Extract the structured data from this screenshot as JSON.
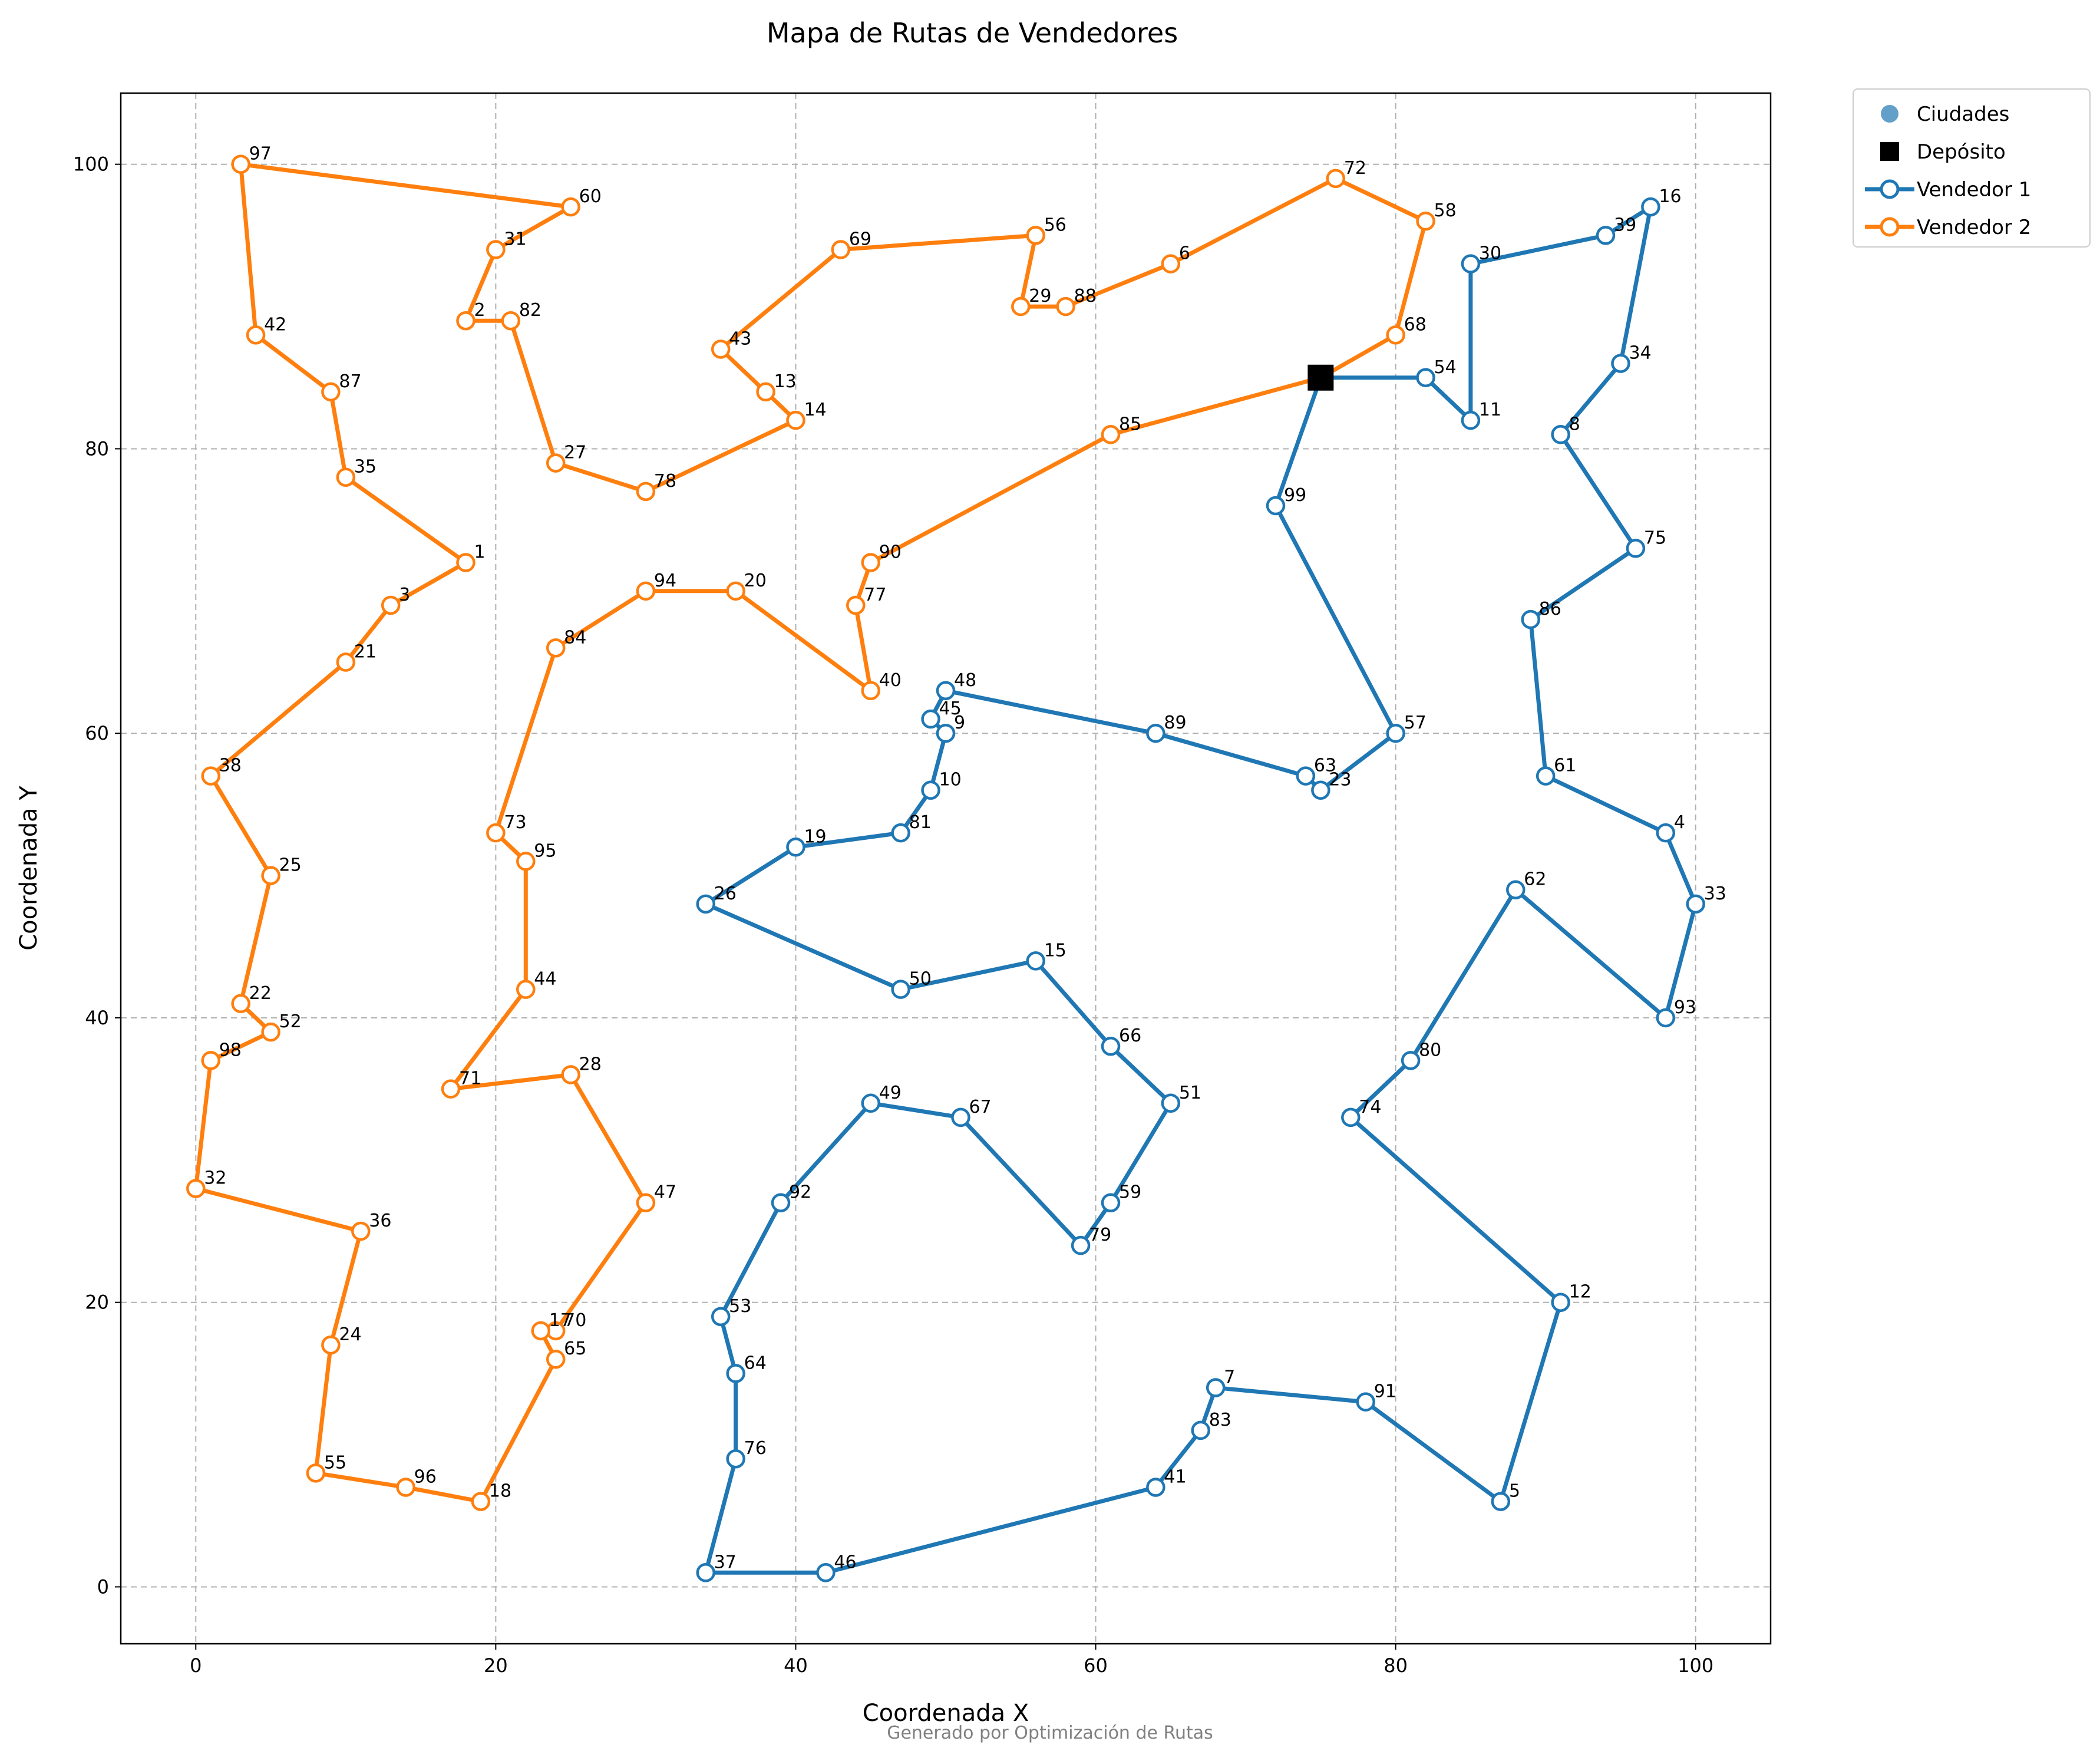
{
  "chart_data": {
    "type": "line",
    "title": "Mapa de Rutas de Vendedores",
    "xlabel": "Coordenada X",
    "ylabel": "Coordenada Y",
    "xlim": [
      -5,
      105
    ],
    "ylim": [
      -4,
      105
    ],
    "xticks": [
      0,
      20,
      40,
      60,
      80,
      100
    ],
    "yticks": [
      0,
      20,
      40,
      60,
      80,
      100
    ],
    "grid": true,
    "legend_position": "outside-top-right",
    "footer": "Generado por Optimización de Rutas",
    "legend": [
      {
        "label": "Ciudades",
        "kind": "point",
        "color": "#1f77b4"
      },
      {
        "label": "Depósito",
        "kind": "square",
        "color": "#000000"
      },
      {
        "label": "Vendedor 1",
        "kind": "route",
        "color": "#1f77b4"
      },
      {
        "label": "Vendedor 2",
        "kind": "route",
        "color": "#ff7f0e"
      }
    ],
    "depot": {
      "x": 75,
      "y": 85
    },
    "cities": [
      {
        "id": "1",
        "x": 18,
        "y": 72
      },
      {
        "id": "2",
        "x": 18,
        "y": 89
      },
      {
        "id": "3",
        "x": 13,
        "y": 69
      },
      {
        "id": "4",
        "x": 98,
        "y": 53
      },
      {
        "id": "5",
        "x": 87,
        "y": 6
      },
      {
        "id": "6",
        "x": 65,
        "y": 93
      },
      {
        "id": "7",
        "x": 68,
        "y": 14
      },
      {
        "id": "8",
        "x": 91,
        "y": 81
      },
      {
        "id": "9",
        "x": 50,
        "y": 60
      },
      {
        "id": "10",
        "x": 49,
        "y": 56
      },
      {
        "id": "11",
        "x": 85,
        "y": 82
      },
      {
        "id": "12",
        "x": 91,
        "y": 20
      },
      {
        "id": "13",
        "x": 38,
        "y": 84
      },
      {
        "id": "14",
        "x": 40,
        "y": 82
      },
      {
        "id": "15",
        "x": 56,
        "y": 44
      },
      {
        "id": "16",
        "x": 97,
        "y": 97
      },
      {
        "id": "17",
        "x": 23,
        "y": 18
      },
      {
        "id": "18",
        "x": 19,
        "y": 6
      },
      {
        "id": "19",
        "x": 40,
        "y": 52
      },
      {
        "id": "20",
        "x": 36,
        "y": 70
      },
      {
        "id": "21",
        "x": 10,
        "y": 65
      },
      {
        "id": "22",
        "x": 3,
        "y": 41
      },
      {
        "id": "23",
        "x": 75,
        "y": 56
      },
      {
        "id": "24",
        "x": 9,
        "y": 17
      },
      {
        "id": "25",
        "x": 5,
        "y": 50
      },
      {
        "id": "26",
        "x": 34,
        "y": 48
      },
      {
        "id": "27",
        "x": 24,
        "y": 79
      },
      {
        "id": "28",
        "x": 25,
        "y": 36
      },
      {
        "id": "29",
        "x": 55,
        "y": 90
      },
      {
        "id": "30",
        "x": 85,
        "y": 93
      },
      {
        "id": "31",
        "x": 20,
        "y": 94
      },
      {
        "id": "32",
        "x": 0,
        "y": 28
      },
      {
        "id": "33",
        "x": 100,
        "y": 48
      },
      {
        "id": "34",
        "x": 95,
        "y": 86
      },
      {
        "id": "35",
        "x": 10,
        "y": 78
      },
      {
        "id": "36",
        "x": 11,
        "y": 25
      },
      {
        "id": "37",
        "x": 34,
        "y": 1
      },
      {
        "id": "38",
        "x": 1,
        "y": 57
      },
      {
        "id": "39",
        "x": 94,
        "y": 95
      },
      {
        "id": "40",
        "x": 45,
        "y": 63
      },
      {
        "id": "41",
        "x": 64,
        "y": 7
      },
      {
        "id": "42",
        "x": 4,
        "y": 88
      },
      {
        "id": "43",
        "x": 35,
        "y": 87
      },
      {
        "id": "44",
        "x": 22,
        "y": 42
      },
      {
        "id": "45",
        "x": 49,
        "y": 61
      },
      {
        "id": "46",
        "x": 42,
        "y": 1
      },
      {
        "id": "47",
        "x": 30,
        "y": 27
      },
      {
        "id": "48",
        "x": 50,
        "y": 63
      },
      {
        "id": "49",
        "x": 45,
        "y": 34
      },
      {
        "id": "50",
        "x": 47,
        "y": 42
      },
      {
        "id": "51",
        "x": 65,
        "y": 34
      },
      {
        "id": "52",
        "x": 5,
        "y": 39
      },
      {
        "id": "53",
        "x": 35,
        "y": 19
      },
      {
        "id": "54",
        "x": 82,
        "y": 85
      },
      {
        "id": "55",
        "x": 8,
        "y": 8
      },
      {
        "id": "56",
        "x": 56,
        "y": 95
      },
      {
        "id": "57",
        "x": 80,
        "y": 60
      },
      {
        "id": "58",
        "x": 82,
        "y": 96
      },
      {
        "id": "59",
        "x": 61,
        "y": 27
      },
      {
        "id": "60",
        "x": 25,
        "y": 97
      },
      {
        "id": "61",
        "x": 90,
        "y": 57
      },
      {
        "id": "62",
        "x": 88,
        "y": 49
      },
      {
        "id": "63",
        "x": 74,
        "y": 57
      },
      {
        "id": "64",
        "x": 36,
        "y": 15
      },
      {
        "id": "65",
        "x": 24,
        "y": 16
      },
      {
        "id": "66",
        "x": 61,
        "y": 38
      },
      {
        "id": "67",
        "x": 51,
        "y": 33
      },
      {
        "id": "68",
        "x": 80,
        "y": 88
      },
      {
        "id": "69",
        "x": 43,
        "y": 94
      },
      {
        "id": "70",
        "x": 24,
        "y": 18
      },
      {
        "id": "71",
        "x": 17,
        "y": 35
      },
      {
        "id": "72",
        "x": 76,
        "y": 99
      },
      {
        "id": "73",
        "x": 20,
        "y": 53
      },
      {
        "id": "74",
        "x": 77,
        "y": 33
      },
      {
        "id": "75",
        "x": 96,
        "y": 73
      },
      {
        "id": "76",
        "x": 36,
        "y": 9
      },
      {
        "id": "77",
        "x": 44,
        "y": 69
      },
      {
        "id": "78",
        "x": 30,
        "y": 77
      },
      {
        "id": "79",
        "x": 59,
        "y": 24
      },
      {
        "id": "80",
        "x": 81,
        "y": 37
      },
      {
        "id": "81",
        "x": 47,
        "y": 53
      },
      {
        "id": "82",
        "x": 21,
        "y": 89
      },
      {
        "id": "83",
        "x": 67,
        "y": 11
      },
      {
        "id": "84",
        "x": 24,
        "y": 66
      },
      {
        "id": "85",
        "x": 61,
        "y": 81
      },
      {
        "id": "86",
        "x": 89,
        "y": 68
      },
      {
        "id": "87",
        "x": 9,
        "y": 84
      },
      {
        "id": "88",
        "x": 58,
        "y": 90
      },
      {
        "id": "89",
        "x": 64,
        "y": 60
      },
      {
        "id": "90",
        "x": 45,
        "y": 72
      },
      {
        "id": "91",
        "x": 78,
        "y": 13
      },
      {
        "id": "92",
        "x": 39,
        "y": 27
      },
      {
        "id": "93",
        "x": 98,
        "y": 40
      },
      {
        "id": "94",
        "x": 30,
        "y": 70
      },
      {
        "id": "95",
        "x": 22,
        "y": 51
      },
      {
        "id": "96",
        "x": 14,
        "y": 7
      },
      {
        "id": "97",
        "x": 3,
        "y": 100
      },
      {
        "id": "98",
        "x": 1,
        "y": 37
      },
      {
        "id": "99",
        "x": 72,
        "y": 76
      }
    ],
    "series": [
      {
        "name": "Vendedor 1",
        "color": "#1f77b4",
        "route": [
          "depot",
          "54",
          "11",
          "30",
          "39",
          "16",
          "34",
          "8",
          "75",
          "86",
          "61",
          "4",
          "33",
          "93",
          "62",
          "80",
          "74",
          "12",
          "5",
          "91",
          "7",
          "83",
          "41",
          "46",
          "37",
          "76",
          "64",
          "53",
          "92",
          "49",
          "67",
          "79",
          "59",
          "51",
          "66",
          "15",
          "50",
          "26",
          "19",
          "81",
          "10",
          "9",
          "45",
          "48",
          "89",
          "63",
          "23",
          "57",
          "99",
          "depot"
        ]
      },
      {
        "name": "Vendedor 2",
        "color": "#ff7f0e",
        "route": [
          "depot",
          "85",
          "90",
          "77",
          "40",
          "20",
          "94",
          "84",
          "73",
          "95",
          "44",
          "71",
          "28",
          "47",
          "70",
          "17",
          "65",
          "18",
          "96",
          "55",
          "24",
          "36",
          "32",
          "98",
          "52",
          "22",
          "25",
          "38",
          "21",
          "3",
          "1",
          "35",
          "87",
          "42",
          "97",
          "60",
          "31",
          "2",
          "82",
          "27",
          "78",
          "14",
          "13",
          "43",
          "69",
          "56",
          "29",
          "88",
          "6",
          "72",
          "58",
          "68",
          "depot"
        ]
      }
    ]
  }
}
